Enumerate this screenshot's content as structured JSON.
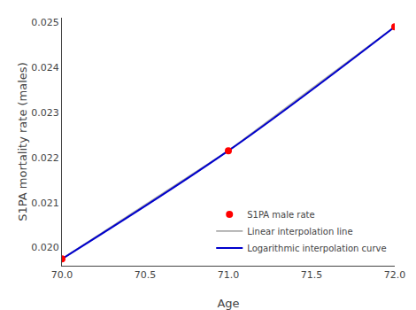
{
  "chart_data": {
    "type": "line",
    "xlabel": "Age",
    "ylabel": "S1PA mortality rate (males)",
    "x": [
      70.0,
      71.0,
      72.0
    ],
    "series": [
      {
        "name": "S1PA male rate",
        "type": "scatter",
        "color": "#ff0000",
        "marker": "circle",
        "values": [
          0.01975,
          0.02215,
          0.0249
        ]
      },
      {
        "name": "Linear interpolation line",
        "type": "line",
        "color": "#aaaaaa",
        "line_style": "solid",
        "values": [
          0.01975,
          0.02215,
          0.0249
        ]
      },
      {
        "name": "Logarithmic interpolation curve",
        "type": "line",
        "color": "#0000cc",
        "line_style": "smooth",
        "values": [
          0.01975,
          0.02215,
          0.0249
        ]
      }
    ],
    "xlim": [
      70.0,
      72.0
    ],
    "ylim": [
      0.0196,
      0.0251
    ],
    "xticks": [
      {
        "value": 70.0,
        "label": "70.0"
      },
      {
        "value": 70.5,
        "label": "70.5"
      },
      {
        "value": 71.0,
        "label": "71.0"
      },
      {
        "value": 71.5,
        "label": "71.5"
      },
      {
        "value": 72.0,
        "label": "72.0"
      }
    ],
    "yticks": [
      {
        "value": 0.02,
        "label": "0.020"
      },
      0.021,
      0.022,
      0.023,
      0.024,
      0.025
    ],
    "grid": false,
    "legend": "lower right"
  }
}
